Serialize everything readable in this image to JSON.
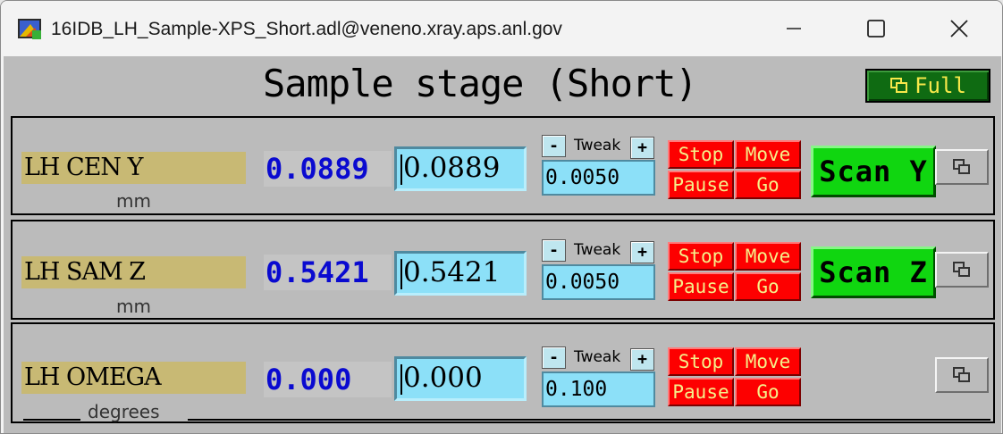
{
  "window": {
    "title": "16IDB_LH_Sample-XPS_Short.adl@veneno.xray.aps.anl.gov",
    "icons": {
      "app": "adl-app-icon",
      "minimize": "minimize-icon",
      "maximize": "maximize-icon",
      "close": "close-icon"
    }
  },
  "screen": {
    "title": "Sample stage (Short)",
    "full_button": "Full",
    "full_icon": "related-display-icon"
  },
  "motors": [
    {
      "label": "LH CEN Y",
      "units": "mm",
      "readback": "0.0889",
      "setpoint": "0.0889",
      "tweak_label": "Tweak",
      "tweak_minus": "-",
      "tweak_plus": "+",
      "tweak_value": "0.0050",
      "stop": "Stop",
      "move": "Move",
      "pause": "Pause",
      "go": "Go",
      "scan": "Scan Y"
    },
    {
      "label": "LH SAM Z",
      "units": "mm",
      "readback": "0.5421",
      "setpoint": "0.5421",
      "tweak_label": "Tweak",
      "tweak_minus": "-",
      "tweak_plus": "+",
      "tweak_value": "0.0050",
      "stop": "Stop",
      "move": "Move",
      "pause": "Pause",
      "go": "Go",
      "scan": "Scan Z"
    },
    {
      "label": "LH OMEGA",
      "units": "degrees",
      "readback": "0.000",
      "setpoint": "0.000",
      "tweak_label": "Tweak",
      "tweak_minus": "-",
      "tweak_plus": "+",
      "tweak_value": "0.100",
      "stop": "Stop",
      "move": "Move",
      "pause": "Pause",
      "go": "Go"
    }
  ],
  "colors": {
    "background": "#bbbbbb",
    "label_bg": "#c8b974",
    "readback_fg": "#0a0ad0",
    "entry_bg": "#8ce0f8",
    "stop_bg": "#fd0000",
    "scan_bg": "#10d610",
    "full_bg": "#0f6b12"
  }
}
